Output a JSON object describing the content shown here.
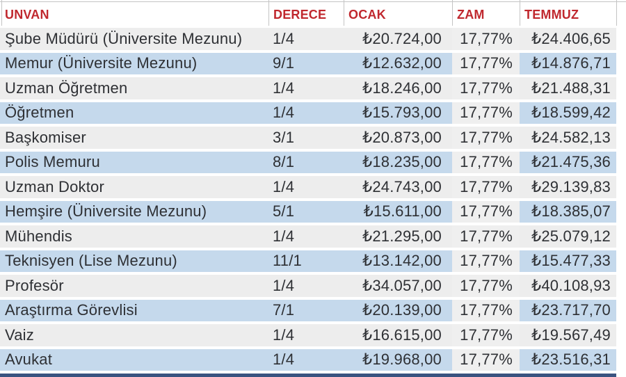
{
  "colors": {
    "header-red": "#C0282E",
    "row-odd": "#EDEDED",
    "row-even": "#C5D9EC",
    "zam-col": "#EFEFEF",
    "grid-line": "#C4C4C4",
    "bottom-bar": "#3A5380",
    "text": "#2E3034"
  },
  "table": {
    "columns": [
      {
        "key": "unvan",
        "label": "UNVAN"
      },
      {
        "key": "derece",
        "label": "DERECE"
      },
      {
        "key": "ocak",
        "label": "OCAK"
      },
      {
        "key": "zam",
        "label": "ZAM"
      },
      {
        "key": "temmuz",
        "label": "TEMMUZ"
      }
    ],
    "rows": [
      {
        "unvan": "Şube Müdürü (Üniversite Mezunu)",
        "derece": "1/4",
        "ocak": "₺20.724,00",
        "zam": "17,77%",
        "temmuz": "₺24.406,65"
      },
      {
        "unvan": "Memur (Üniversite Mezunu)",
        "derece": "9/1",
        "ocak": "₺12.632,00",
        "zam": "17,77%",
        "temmuz": "₺14.876,71"
      },
      {
        "unvan": "Uzman Öğretmen",
        "derece": "1/4",
        "ocak": "₺18.246,00",
        "zam": "17,77%",
        "temmuz": "₺21.488,31"
      },
      {
        "unvan": "Öğretmen",
        "derece": "1/4",
        "ocak": "₺15.793,00",
        "zam": "17,77%",
        "temmuz": "₺18.599,42"
      },
      {
        "unvan": "Başkomiser",
        "derece": "3/1",
        "ocak": "₺20.873,00",
        "zam": "17,77%",
        "temmuz": "₺24.582,13"
      },
      {
        "unvan": "Polis Memuru",
        "derece": "8/1",
        "ocak": "₺18.235,00",
        "zam": "17,77%",
        "temmuz": "₺21.475,36"
      },
      {
        "unvan": "Uzman Doktor",
        "derece": "1/4",
        "ocak": "₺24.743,00",
        "zam": "17,77%",
        "temmuz": "₺29.139,83"
      },
      {
        "unvan": "Hemşire (Üniversite Mezunu)",
        "derece": "5/1",
        "ocak": "₺15.611,00",
        "zam": "17,77%",
        "temmuz": "₺18.385,07"
      },
      {
        "unvan": "Mühendis",
        "derece": "1/4",
        "ocak": "₺21.295,00",
        "zam": "17,77%",
        "temmuz": "₺25.079,12"
      },
      {
        "unvan": "Teknisyen (Lise Mezunu)",
        "derece": "11/1",
        "ocak": "₺13.142,00",
        "zam": "17,77%",
        "temmuz": "₺15.477,33"
      },
      {
        "unvan": "Profesör",
        "derece": "1/4",
        "ocak": "₺34.057,00",
        "zam": "17,77%",
        "temmuz": "₺40.108,93"
      },
      {
        "unvan": "Araştırma Görevlisi",
        "derece": "7/1",
        "ocak": "₺20.139,00",
        "zam": "17,77%",
        "temmuz": "₺23.717,70"
      },
      {
        "unvan": "Vaiz",
        "derece": "1/4",
        "ocak": "₺16.615,00",
        "zam": "17,77%",
        "temmuz": "₺19.567,49"
      },
      {
        "unvan": "Avukat",
        "derece": "1/4",
        "ocak": "₺19.968,00",
        "zam": "17,77%",
        "temmuz": "₺23.516,31"
      }
    ]
  }
}
